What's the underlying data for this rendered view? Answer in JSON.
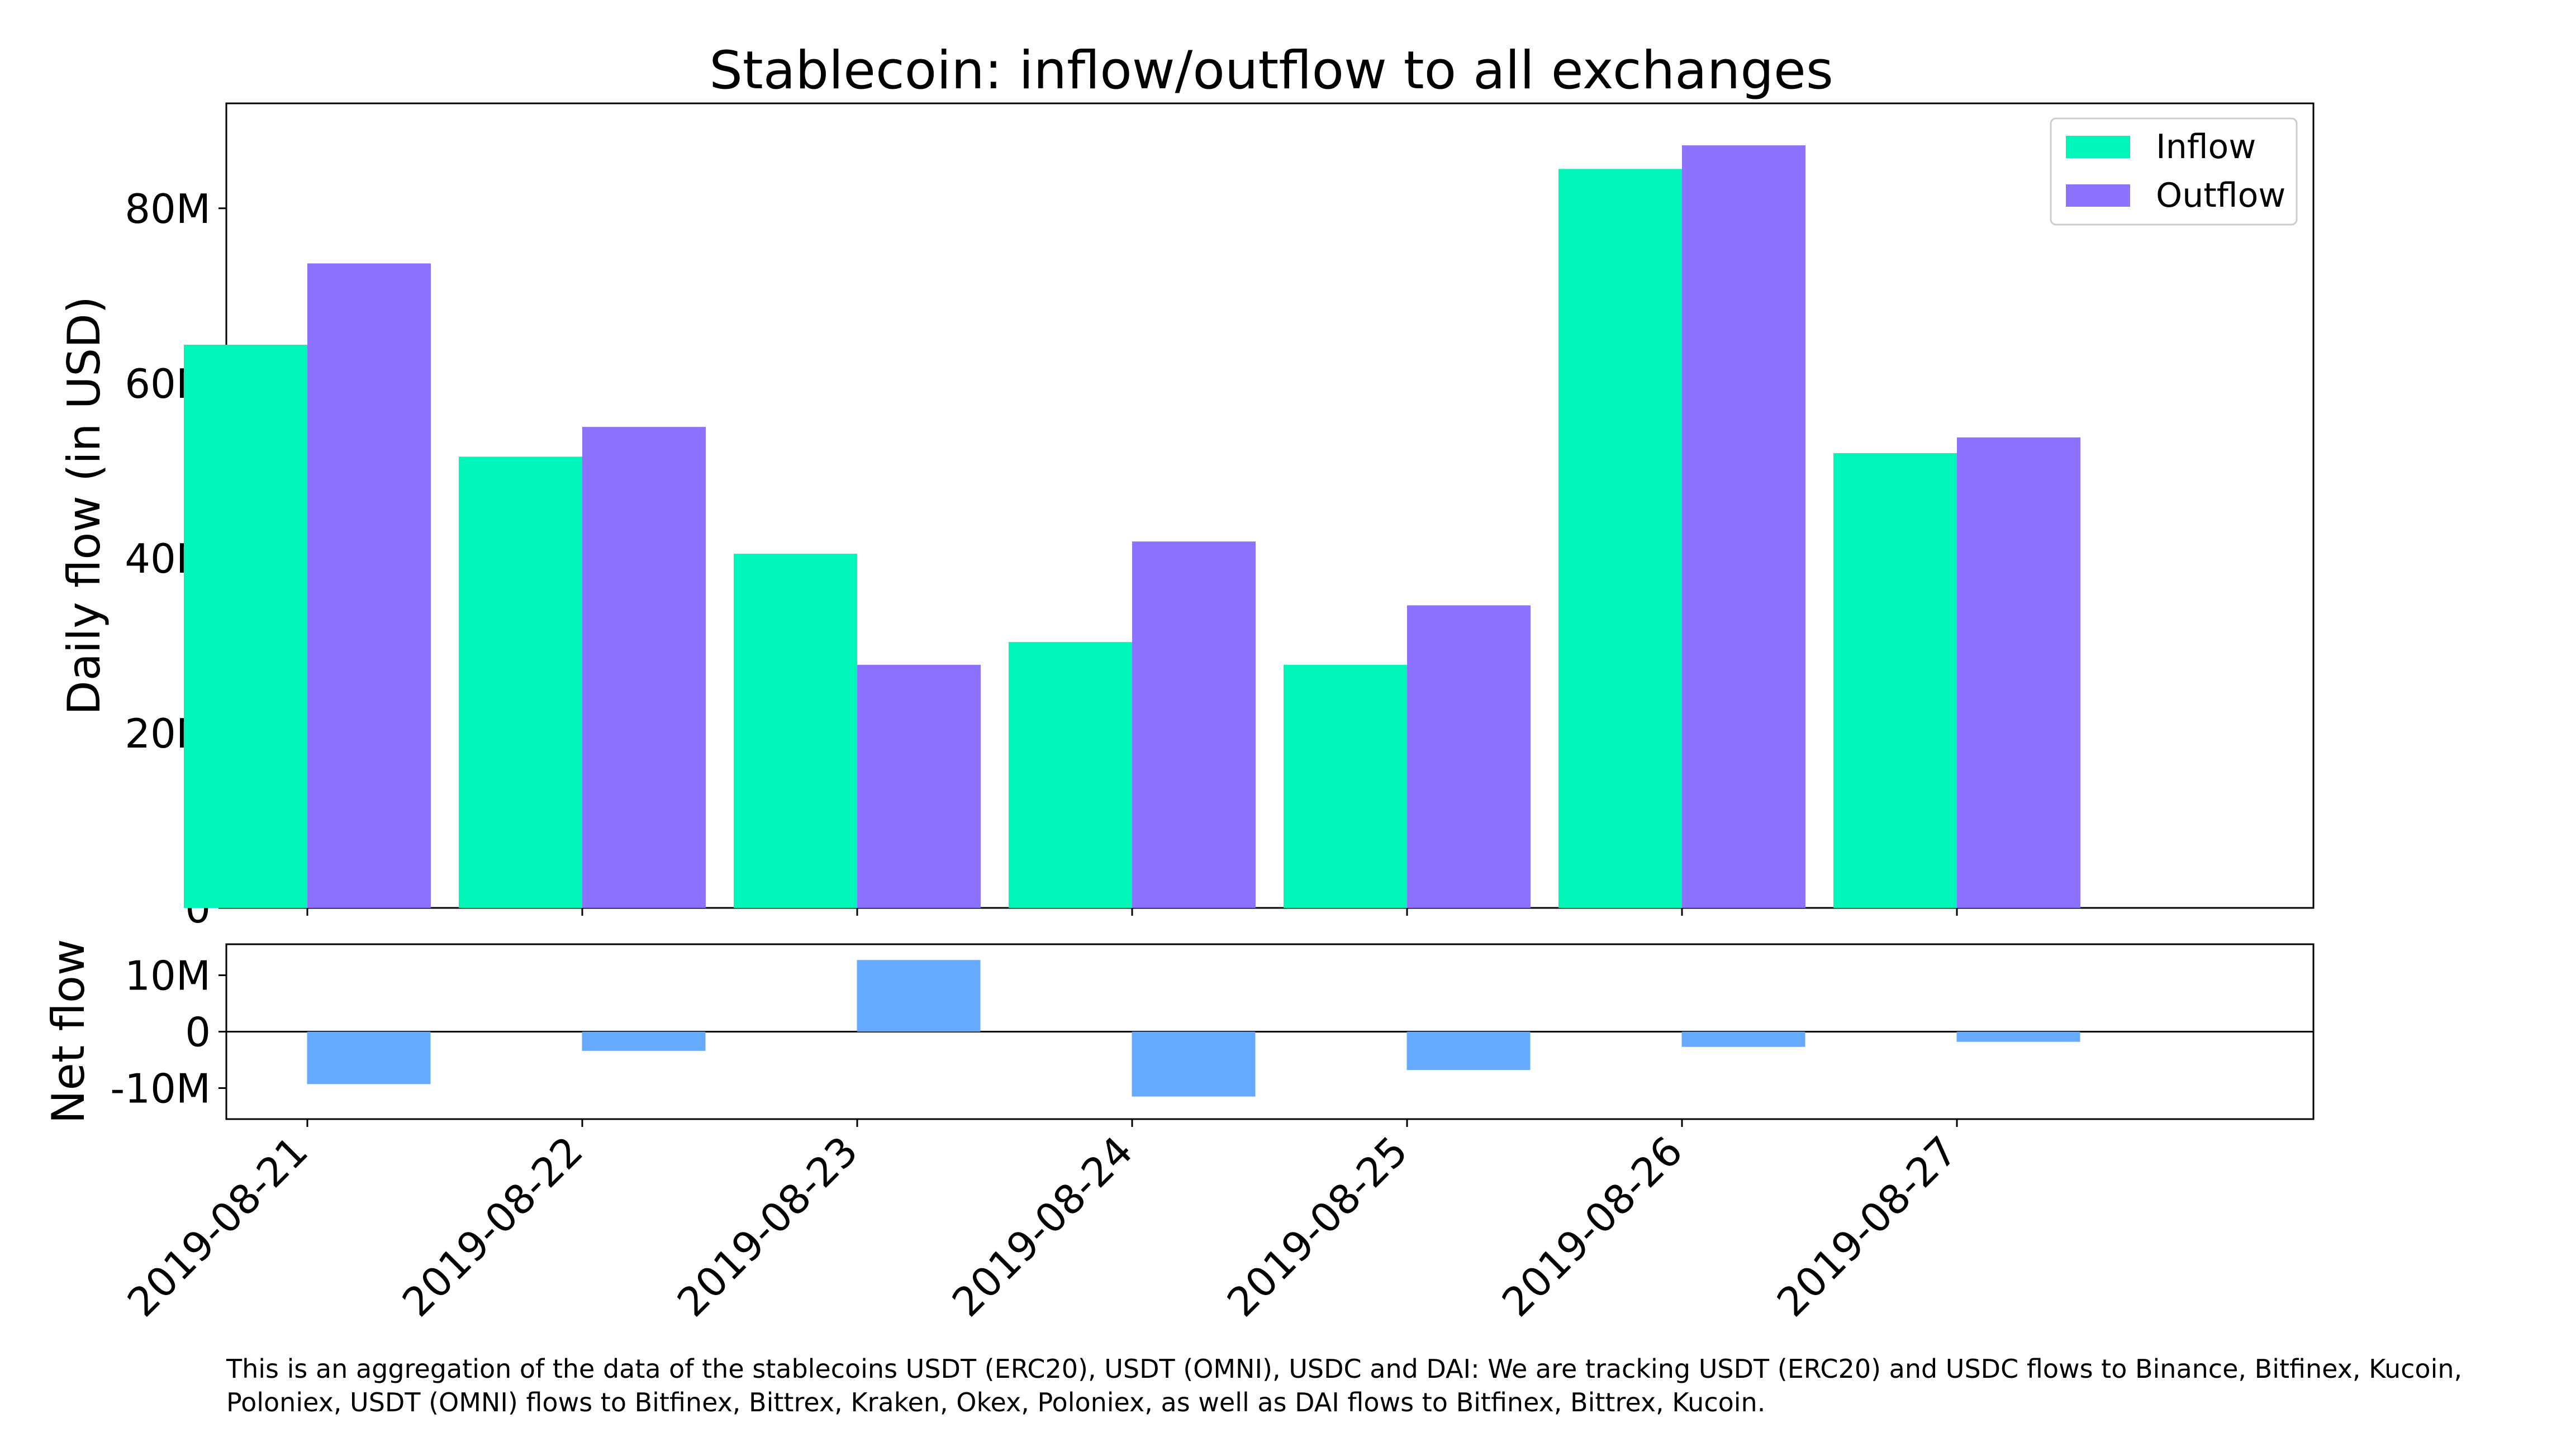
{
  "chart_data": {
    "type": "bar",
    "title": "Stablecoin: inflow/outflow to all exchanges",
    "categories": [
      "2019-08-21",
      "2019-08-22",
      "2019-08-23",
      "2019-08-24",
      "2019-08-25",
      "2019-08-26",
      "2019-08-27"
    ],
    "series": [
      {
        "name": "Inflow",
        "color": "#00f5b8",
        "values": [
          64400000,
          51600000,
          40500000,
          30400000,
          27800000,
          84500000,
          52000000
        ]
      },
      {
        "name": "Outflow",
        "color": "#8c72ff",
        "values": [
          73700000,
          55000000,
          27800000,
          41900000,
          34600000,
          87200000,
          53800000
        ]
      }
    ],
    "ylabel": "Daily flow (in USD)",
    "ylim": [
      0,
      92000000
    ],
    "yticks": [
      0,
      20000000,
      40000000,
      60000000,
      80000000
    ],
    "ytick_labels": [
      "0",
      "20M",
      "40M",
      "60M",
      "80M"
    ],
    "legend_position": "upper right",
    "net_flow": {
      "type": "bar",
      "ylabel": "Net flow",
      "color": "#66aaff",
      "values": [
        -9300000,
        -3400000,
        12700000,
        -11500000,
        -6800000,
        -2700000,
        -1800000
      ],
      "ylim": [
        -15500000,
        15500000
      ],
      "yticks": [
        -10000000,
        0,
        10000000
      ],
      "ytick_labels": [
        "-10M",
        "0",
        "10M"
      ]
    },
    "footnote": "This is an aggregation of the data of the stablecoins USDT (ERC20), USDT (OMNI), USDC and DAI: We are tracking USDT (ERC20) and USDC flows to Binance, Bitfinex, Kucoin, Poloniex, USDT (OMNI) flows to Bitfinex, Bittrex, Kraken, Okex, Poloniex, as well as DAI flows to Bitfinex, Bittrex, Kucoin."
  }
}
